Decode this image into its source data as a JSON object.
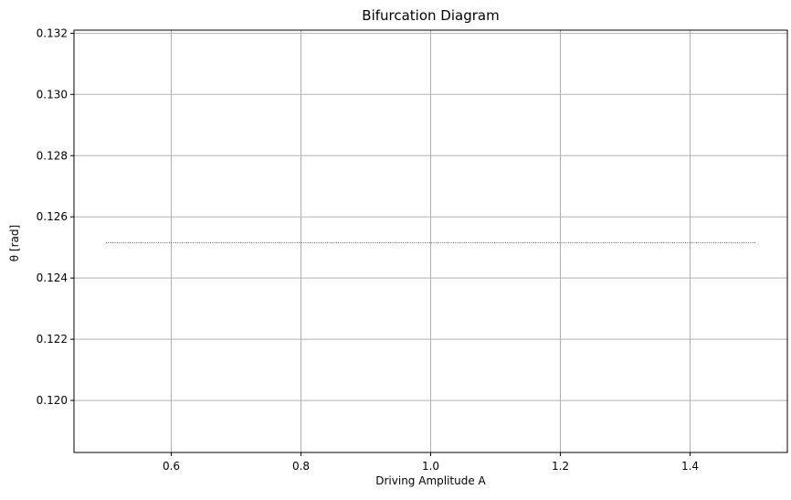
{
  "chart_data": {
    "type": "scatter",
    "title": "Bifurcation Diagram",
    "xlabel": "Driving Amplitude A",
    "ylabel": "θ [rad]",
    "xlim": [
      0.45,
      1.55
    ],
    "ylim": [
      0.1183,
      0.1321
    ],
    "grid": true,
    "xticks": [
      0.6,
      0.8,
      1.0,
      1.2,
      1.4
    ],
    "xtick_labels": [
      "0.6",
      "0.8",
      "1.0",
      "1.2",
      "1.4"
    ],
    "yticks": [
      0.12,
      0.122,
      0.124,
      0.126,
      0.128,
      0.13,
      0.132
    ],
    "ytick_labels": [
      "0.120",
      "0.122",
      "0.124",
      "0.126",
      "0.128",
      "0.130",
      "0.132"
    ],
    "series": [
      {
        "x_range": [
          0.5,
          1.5
        ],
        "n_points": 300,
        "y_constant": 0.12515,
        "color": "#000000"
      }
    ]
  }
}
